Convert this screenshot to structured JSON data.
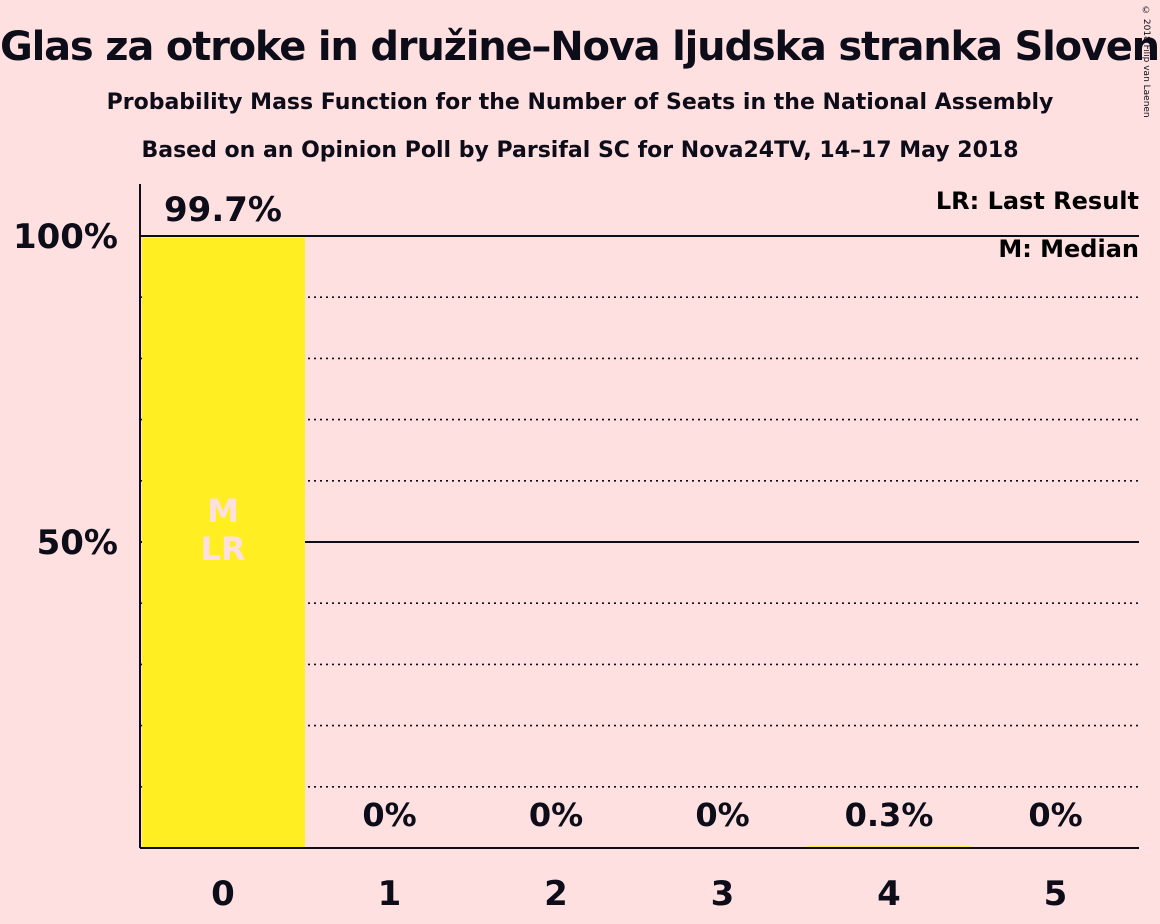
{
  "title": "Glas za otroke in družine–Nova ljudska stranka Slovenije",
  "subtitle_1": "Probability Mass Function for the Number of Seats in the National Assembly",
  "subtitle_2": "Based on an Opinion Poll by Parsifal SC for Nova24TV, 14–17 May 2018",
  "copyright": "© 2018 Filip van Laenen",
  "legend": {
    "last_result": "LR: Last Result",
    "median": "M: Median"
  },
  "colors": {
    "background": "#FFE0E1",
    "bar": "#FFEE22",
    "bar_marker_text": "#FFE0E1",
    "text": "#0d0d1a"
  },
  "chart_data": {
    "type": "bar",
    "categories": [
      "0",
      "1",
      "2",
      "3",
      "4",
      "5"
    ],
    "values": [
      99.7,
      0,
      0,
      0,
      0.3,
      0
    ],
    "value_labels": [
      "99.7%",
      "0%",
      "0%",
      "0%",
      "0.3%",
      "0%"
    ],
    "ylim": [
      0,
      100
    ],
    "yticks": [
      {
        "value": 50,
        "label": "50%"
      },
      {
        "value": 100,
        "label": "100%"
      }
    ],
    "minor_gridlines": [
      10,
      20,
      30,
      40,
      60,
      70,
      80,
      90
    ],
    "median_category": "0",
    "last_result_category": "0",
    "bar_markers": [
      "M",
      "LR"
    ],
    "legend_position": "top-right"
  }
}
